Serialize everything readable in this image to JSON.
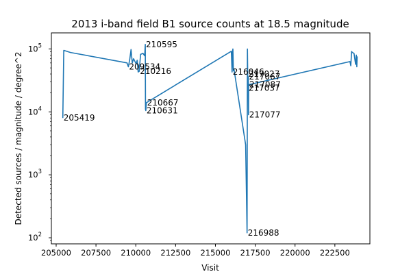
{
  "chart_data": {
    "type": "line",
    "title": "2013 i-band field B1 source counts at 18.5 magnitude",
    "xlabel": "Visit",
    "ylabel": "Detected sources / magnitude / degree^2",
    "yscale": "log",
    "xlim": [
      204700,
      224700
    ],
    "ylim": [
      80,
      180000
    ],
    "grid": false,
    "line_color": "#1f77b4",
    "xticks": [
      205000,
      207500,
      210000,
      212500,
      215000,
      217500,
      220000,
      222500
    ],
    "xtick_labels": [
      "205000",
      "207500",
      "210000",
      "212500",
      "215000",
      "217500",
      "220000",
      "222500"
    ],
    "yticks": [
      100,
      1000,
      10000,
      100000
    ],
    "ytick_labels": [
      "10^2",
      "10^3",
      "10^4",
      "10^5"
    ],
    "series": [
      {
        "x": [
          205419,
          205480,
          205900,
          209450,
          209534,
          209620,
          209700,
          209780,
          209860,
          209940,
          210020,
          210090,
          210150,
          210216,
          210300,
          210450,
          210560,
          210595,
          210610,
          210631,
          210645,
          210667,
          216000,
          216046,
          216070,
          216100,
          216130,
          216160,
          216190,
          216900,
          216988,
          217010,
          217027,
          217037,
          217050,
          217067,
          217077,
          217087,
          223450,
          223500,
          223550,
          223600,
          223700,
          223800,
          223850,
          223880,
          223900
        ],
        "y": [
          8000,
          95000,
          88000,
          60000,
          52000,
          68000,
          98000,
          60000,
          70000,
          64000,
          58000,
          66000,
          43000,
          44000,
          82000,
          85000,
          78000,
          118000,
          11000,
          10500,
          12000,
          14000,
          92000,
          43000,
          90000,
          100000,
          45000,
          48000,
          44000,
          3000,
          120,
          100000,
          40000,
          24000,
          29000,
          36000,
          9000,
          27000,
          63000,
          54000,
          91000,
          88000,
          85000,
          57000,
          80000,
          52000,
          76000
        ]
      }
    ],
    "annotations": [
      {
        "text": "205419",
        "x": 205419,
        "y": 8000
      },
      {
        "text": "209534",
        "x": 209534,
        "y": 52000
      },
      {
        "text": "210216",
        "x": 210216,
        "y": 44000
      },
      {
        "text": "210595",
        "x": 210595,
        "y": 118000
      },
      {
        "text": "210667",
        "x": 210667,
        "y": 14000
      },
      {
        "text": "210631",
        "x": 210631,
        "y": 10500
      },
      {
        "text": "216046",
        "x": 216046,
        "y": 43000
      },
      {
        "text": "217027",
        "x": 217027,
        "y": 40000
      },
      {
        "text": "217067",
        "x": 217067,
        "y": 36000
      },
      {
        "text": "217087",
        "x": 217087,
        "y": 27000
      },
      {
        "text": "217037",
        "x": 217037,
        "y": 24000
      },
      {
        "text": "217077",
        "x": 217077,
        "y": 9000
      },
      {
        "text": "216988",
        "x": 216988,
        "y": 120
      }
    ]
  }
}
